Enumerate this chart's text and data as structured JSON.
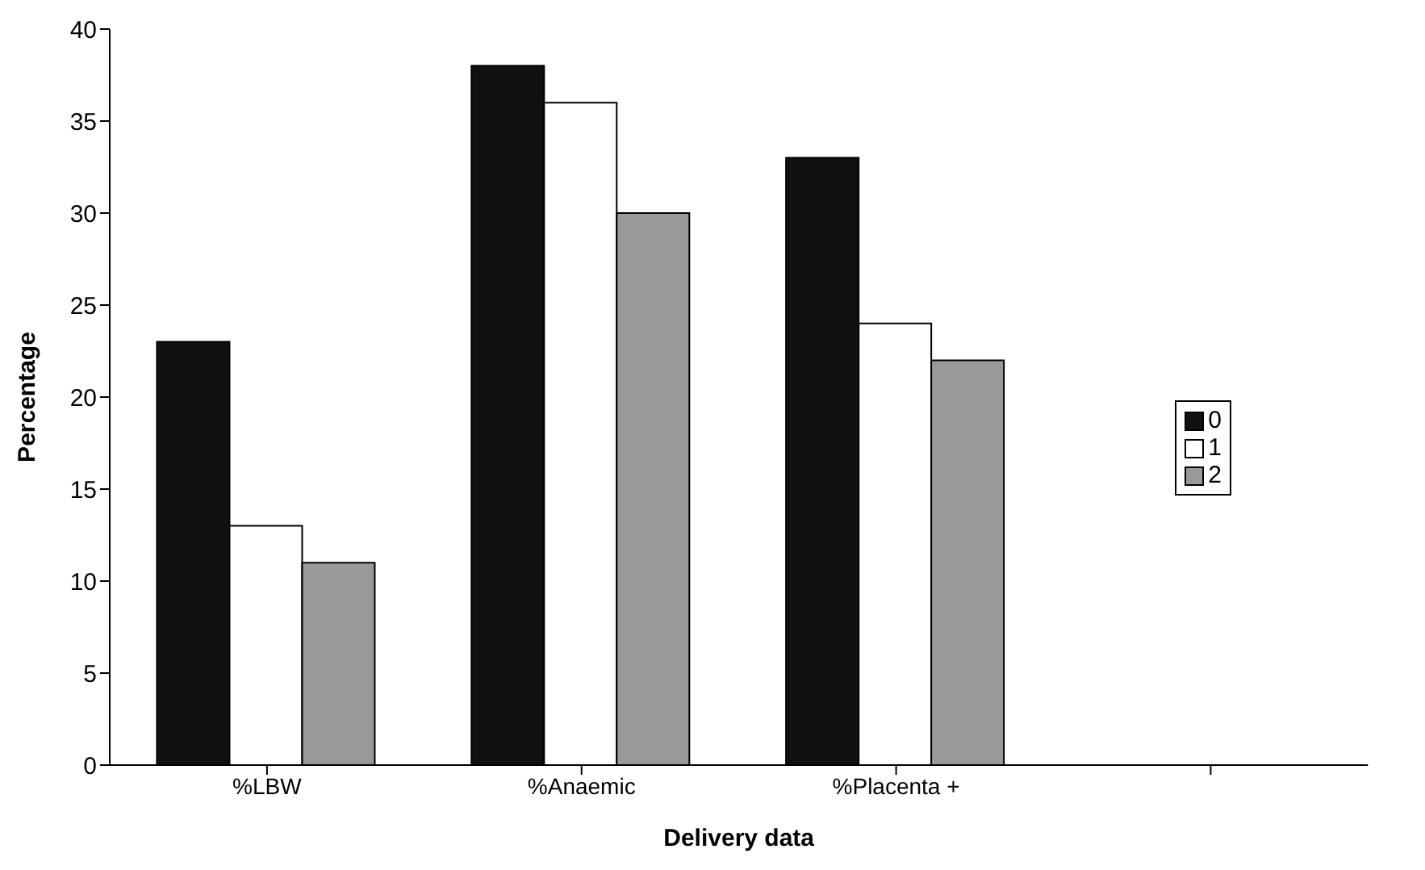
{
  "chart_data": {
    "type": "bar",
    "xlabel": "Delivery data",
    "ylabel": "Percentage",
    "categories": [
      "%LBW",
      "%Anaemic",
      "%Placenta +",
      null
    ],
    "series": [
      {
        "name": "0",
        "color": "#111111",
        "values": [
          23,
          38,
          33,
          null
        ]
      },
      {
        "name": "1",
        "color": "#ffffff",
        "values": [
          13,
          36,
          24,
          null
        ]
      },
      {
        "name": "2",
        "color": "#999999",
        "values": [
          11,
          30,
          22,
          null
        ]
      }
    ],
    "ylim": [
      0,
      40
    ],
    "yticks": [
      0,
      5,
      10,
      15,
      20,
      25,
      30,
      35,
      40
    ],
    "grid": false,
    "legend": "right"
  }
}
